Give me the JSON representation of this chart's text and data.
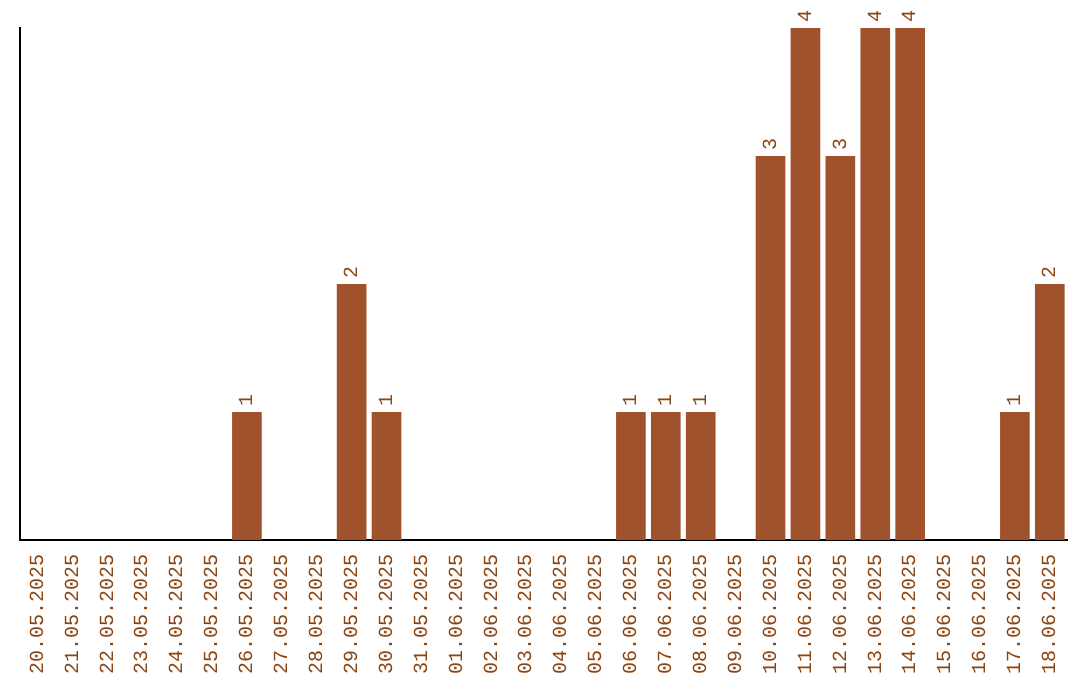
{
  "chart_data": {
    "type": "bar",
    "categories": [
      "20.05.2025",
      "21.05.2025",
      "22.05.2025",
      "23.05.2025",
      "24.05.2025",
      "25.05.2025",
      "26.05.2025",
      "27.05.2025",
      "28.05.2025",
      "29.05.2025",
      "30.05.2025",
      "31.05.2025",
      "01.06.2025",
      "02.06.2025",
      "03.06.2025",
      "04.06.2025",
      "05.06.2025",
      "06.06.2025",
      "07.06.2025",
      "08.06.2025",
      "09.06.2025",
      "10.06.2025",
      "11.06.2025",
      "12.06.2025",
      "13.06.2025",
      "14.06.2025",
      "15.06.2025",
      "16.06.2025",
      "17.06.2025",
      "18.06.2025"
    ],
    "values": [
      0,
      0,
      0,
      0,
      0,
      0,
      1,
      0,
      0,
      2,
      1,
      0,
      0,
      0,
      0,
      0,
      0,
      1,
      1,
      1,
      0,
      3,
      4,
      3,
      4,
      4,
      0,
      0,
      1,
      2
    ],
    "value_labels": [
      null,
      null,
      null,
      null,
      null,
      null,
      "1",
      null,
      null,
      "2",
      "1",
      null,
      null,
      null,
      null,
      null,
      null,
      "1",
      "1",
      "1",
      null,
      "3",
      "4",
      "3",
      "4",
      "4",
      null,
      null,
      "1",
      "2"
    ],
    "color": "#a0522d",
    "ylim": [
      0,
      4
    ],
    "tick_labels": "x"
  }
}
